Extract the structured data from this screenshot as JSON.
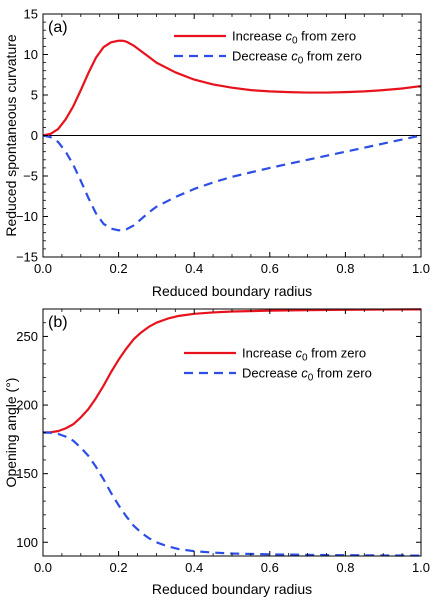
{
  "chart_data": [
    {
      "type": "line",
      "panel_label": "(a)",
      "xlabel": "Reduced boundary radius",
      "ylabel": "Reduced spontaneous curvature",
      "xlim": [
        0.0,
        1.0
      ],
      "ylim": [
        -15,
        15
      ],
      "xticks": [
        "0.0",
        "0.2",
        "0.4",
        "0.6",
        "0.8",
        "1.0"
      ],
      "yticks": [
        "−15",
        "−10",
        "−5",
        "0",
        "5",
        "10",
        "15"
      ],
      "xtick_values": [
        0,
        0.2,
        0.4,
        0.6,
        0.8,
        1.0
      ],
      "ytick_values": [
        -15,
        -10,
        -5,
        0,
        5,
        10,
        15
      ],
      "zero_line": true,
      "legend_position": "top-right",
      "series": [
        {
          "name_prefix": "Increase ",
          "name_math": "c",
          "name_sub": "0",
          "name_suffix": " from zero",
          "color": "#e8121c",
          "style": "solid",
          "x": [
            0,
            0.02,
            0.04,
            0.06,
            0.08,
            0.1,
            0.12,
            0.14,
            0.16,
            0.18,
            0.2,
            0.21,
            0.22,
            0.24,
            0.26,
            0.28,
            0.3,
            0.35,
            0.4,
            0.45,
            0.5,
            0.55,
            0.6,
            0.65,
            0.7,
            0.75,
            0.8,
            0.85,
            0.9,
            0.95,
            1.0
          ],
          "y": [
            0,
            0.2,
            0.8,
            2.0,
            3.6,
            5.6,
            7.7,
            9.6,
            10.9,
            11.5,
            11.7,
            11.7,
            11.6,
            11.1,
            10.4,
            9.7,
            9.0,
            7.8,
            6.9,
            6.3,
            5.9,
            5.6,
            5.45,
            5.35,
            5.3,
            5.3,
            5.35,
            5.45,
            5.6,
            5.8,
            6.1
          ]
        },
        {
          "name_prefix": "Decrease ",
          "name_math": "c",
          "name_sub": "0",
          "name_suffix": " from zero",
          "color": "#2d4ee6",
          "style": "dashed",
          "x": [
            0,
            0.02,
            0.04,
            0.06,
            0.08,
            0.1,
            0.12,
            0.14,
            0.16,
            0.18,
            0.2,
            0.21,
            0.22,
            0.24,
            0.26,
            0.28,
            0.3,
            0.35,
            0.4,
            0.45,
            0.5,
            0.6,
            0.7,
            0.8,
            0.9,
            1.0
          ],
          "y": [
            0,
            -0.2,
            -0.8,
            -2.0,
            -3.6,
            -5.6,
            -7.7,
            -9.6,
            -10.9,
            -11.5,
            -11.7,
            -11.7,
            -11.6,
            -11.1,
            -10.3,
            -9.5,
            -8.8,
            -7.6,
            -6.6,
            -5.8,
            -5.1,
            -4.0,
            -3.0,
            -2.0,
            -1.0,
            0.0
          ]
        }
      ]
    },
    {
      "type": "line",
      "panel_label": "(b)",
      "xlabel": "Reduced boundary radius",
      "ylabel": "Opening angle (°)",
      "xlim": [
        0.0,
        1.0
      ],
      "ylim": [
        90,
        270
      ],
      "xticks": [
        "0.0",
        "0.2",
        "0.4",
        "0.6",
        "0.8",
        "1.0"
      ],
      "yticks": [
        "100",
        "150",
        "200",
        "250"
      ],
      "xtick_values": [
        0,
        0.2,
        0.4,
        0.6,
        0.8,
        1.0
      ],
      "ytick_values": [
        100,
        150,
        200,
        250
      ],
      "zero_line": false,
      "legend_position": "top-right",
      "series": [
        {
          "name_prefix": "Increase ",
          "name_math": "c",
          "name_sub": "0",
          "name_suffix": " from zero",
          "color": "#e8121c",
          "style": "solid",
          "x": [
            0,
            0.02,
            0.04,
            0.06,
            0.08,
            0.1,
            0.12,
            0.14,
            0.16,
            0.18,
            0.2,
            0.22,
            0.24,
            0.26,
            0.28,
            0.3,
            0.33,
            0.36,
            0.4,
            0.45,
            0.5,
            0.6,
            0.7,
            0.8,
            0.9,
            1.0
          ],
          "y": [
            180,
            180.2,
            181,
            183,
            186,
            191,
            197,
            205,
            214,
            224,
            233,
            241,
            248,
            253,
            257,
            260,
            263,
            265,
            266.5,
            267.5,
            268.2,
            268.8,
            269.2,
            269.4,
            269.6,
            269.7
          ]
        },
        {
          "name_prefix": "Decrease ",
          "name_math": "c",
          "name_sub": "0",
          "name_suffix": " from zero",
          "color": "#2d4ee6",
          "style": "dashed",
          "x": [
            0,
            0.02,
            0.04,
            0.06,
            0.08,
            0.1,
            0.12,
            0.14,
            0.16,
            0.18,
            0.2,
            0.22,
            0.24,
            0.26,
            0.28,
            0.3,
            0.33,
            0.36,
            0.4,
            0.45,
            0.5,
            0.6,
            0.7,
            0.8,
            0.9,
            1.0
          ],
          "y": [
            180,
            179.8,
            179,
            177,
            174,
            169,
            163,
            155,
            146,
            136,
            127,
            119,
            112,
            107,
            103,
            100,
            97,
            95,
            93.5,
            92.5,
            91.8,
            91.2,
            90.8,
            90.6,
            90.4,
            90.3
          ]
        }
      ]
    }
  ]
}
